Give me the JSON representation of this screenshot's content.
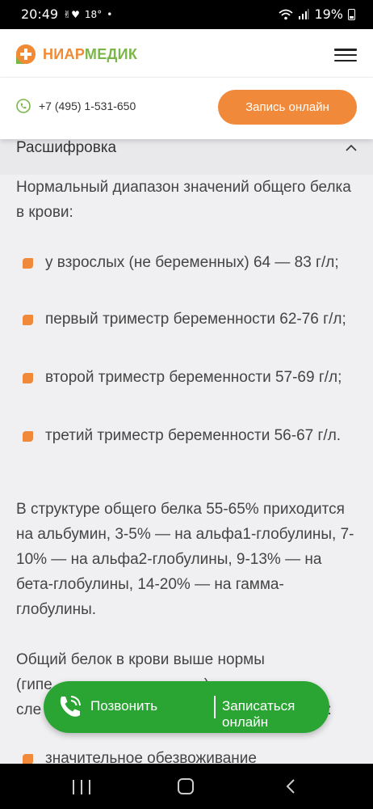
{
  "status_bar": {
    "time": "20:49",
    "temperature": "18°",
    "battery_percent": "19%"
  },
  "header": {
    "logo_part1": "НИАР",
    "logo_part2": "МЕДИК"
  },
  "contact": {
    "phone": "+7 (495) 1-531-650",
    "book_label": "Запись онлайн"
  },
  "accordion": {
    "title": "Расшифровка"
  },
  "content": {
    "intro": "Нормальный диапазон значений общего белка в крови:",
    "bullets": [
      "у взрослых (не беременных) 64 — 83 г/л;",
      "первый триместр беременности 62-76 г/л;",
      "второй триместр беременности 57-69 г/л;",
      "третий триместр беременности 56-67 г/л."
    ],
    "structure": "В структуре общего белка 55-65% приходится на альбумин, 3-5% — на альфа1-глобулины, 7-10% — на альфа2-глобулины, 9-13% — на бета-глобулины, 14-20% — на гамма-глобулины.",
    "elevated_part1": "Общий белок в крови выше нормы",
    "elevated_line2_start": "(гипе",
    "elevated_line2_end": ")",
    "elevated_line3_start": "сле",
    "elevated_line3_end": "х:",
    "last_bullet": "значительное обезвоживание"
  },
  "float_cta": {
    "call_label": "Позвонить",
    "book_label": "Записаться онлайн"
  },
  "colors": {
    "accent_orange": "#f0893a",
    "accent_green": "#2aa534",
    "logo_green": "#7ab648"
  }
}
